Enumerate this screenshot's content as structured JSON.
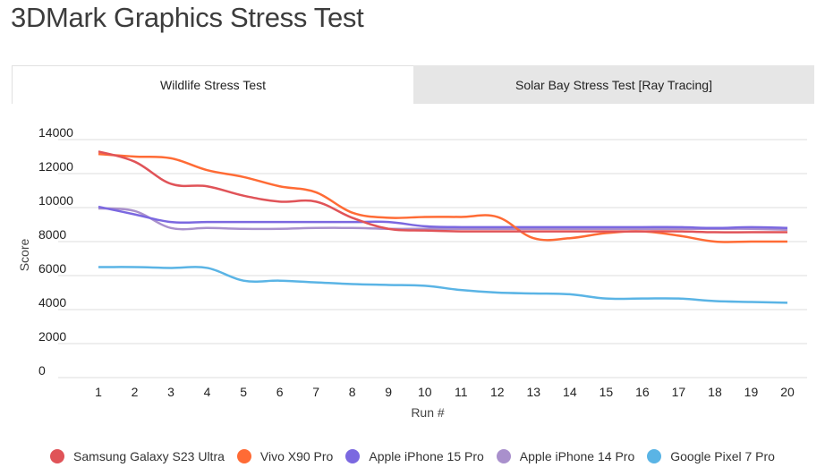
{
  "page_title": "3DMark Graphics Stress Test",
  "tabs": [
    {
      "label": "Wildlife Stress Test",
      "active": true
    },
    {
      "label": "Solar Bay Stress Test [Ray Tracing]",
      "active": false
    }
  ],
  "chart_data": {
    "type": "line",
    "title": "3DMark Graphics Stress Test",
    "xlabel": "Run #",
    "ylabel": "Score",
    "x": [
      1,
      2,
      3,
      4,
      5,
      6,
      7,
      8,
      9,
      10,
      11,
      12,
      13,
      14,
      15,
      16,
      17,
      18,
      19,
      20
    ],
    "yticks": [
      0,
      2000,
      4000,
      6000,
      8000,
      10000,
      12000,
      14000
    ],
    "ylim": [
      0,
      14000
    ],
    "grid": true,
    "legend_position": "bottom",
    "series": [
      {
        "name": "Samsung Galaxy S23 Ultra",
        "color": "#e05358",
        "values": [
          13300,
          12700,
          11400,
          11250,
          10700,
          10350,
          10350,
          9400,
          8750,
          8650,
          8600,
          8600,
          8600,
          8600,
          8600,
          8600,
          8600,
          8550,
          8550,
          8550
        ]
      },
      {
        "name": "Vivo X90 Pro",
        "color": "#ff6b35",
        "values": [
          13150,
          13000,
          12900,
          12200,
          11800,
          11250,
          10900,
          9700,
          9400,
          9450,
          9450,
          9450,
          8200,
          8200,
          8500,
          8600,
          8350,
          8000,
          8000,
          8000
        ]
      },
      {
        "name": "Apple iPhone 15 Pro",
        "color": "#7b68e0",
        "values": [
          10050,
          9600,
          9150,
          9150,
          9150,
          9150,
          9150,
          9150,
          9150,
          8900,
          8850,
          8850,
          8850,
          8850,
          8850,
          8850,
          8850,
          8800,
          8850,
          8800
        ]
      },
      {
        "name": "Apple iPhone 14 Pro",
        "color": "#a990cc",
        "values": [
          9950,
          9800,
          8800,
          8800,
          8750,
          8750,
          8800,
          8800,
          8750,
          8750,
          8750,
          8750,
          8750,
          8750,
          8750,
          8750,
          8750,
          8750,
          8750,
          8700
        ]
      },
      {
        "name": "Google Pixel 7 Pro",
        "color": "#5ab4e5",
        "values": [
          6500,
          6500,
          6450,
          6450,
          5700,
          5700,
          5600,
          5500,
          5450,
          5400,
          5150,
          5000,
          4950,
          4900,
          4650,
          4650,
          4650,
          4500,
          4450,
          4400
        ]
      }
    ]
  }
}
